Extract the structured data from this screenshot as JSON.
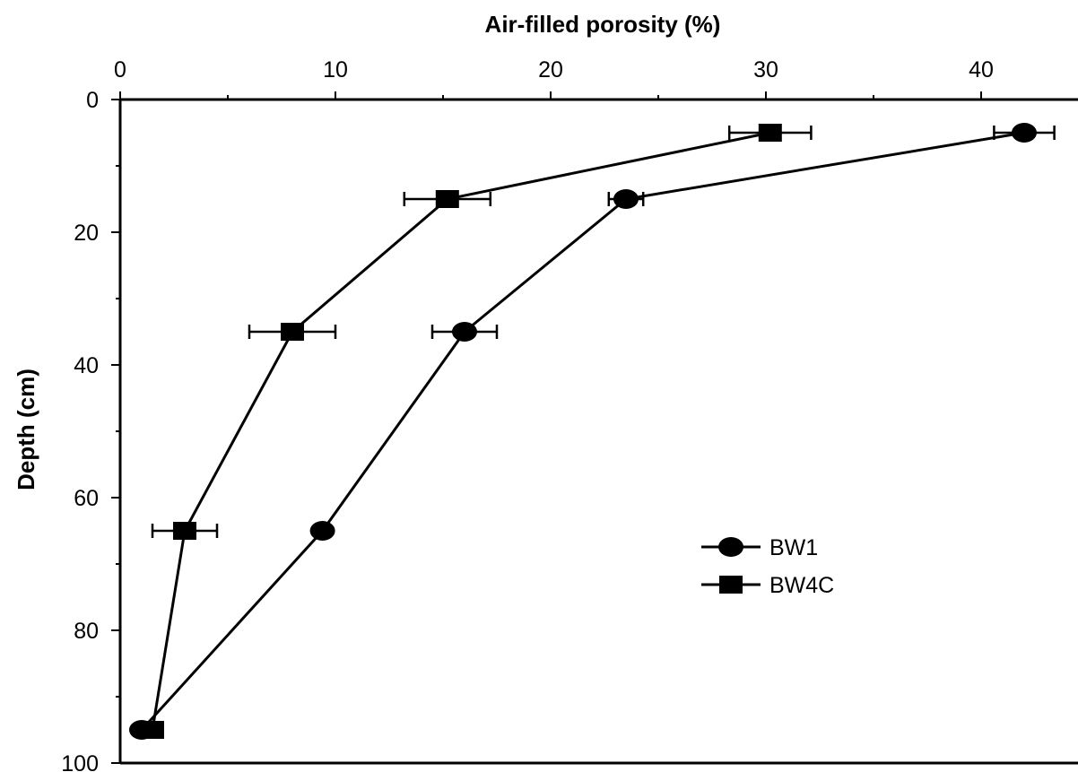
{
  "chart_data": {
    "type": "line",
    "xlabel": "Air-filled porosity (%)",
    "ylabel": "Depth (cm)",
    "x_axis_position": "top",
    "y_inverted": true,
    "xlim": [
      0,
      44.5
    ],
    "ylim": [
      0,
      100
    ],
    "xticks": [
      0,
      10,
      20,
      30,
      40
    ],
    "yticks": [
      0,
      20,
      40,
      60,
      80,
      100
    ],
    "legend_position": "right",
    "grid": false,
    "series": [
      {
        "name": "BW1",
        "marker": "circle",
        "color": "#000000",
        "x": [
          42.0,
          23.5,
          16.0,
          9.4,
          1.0
        ],
        "y": [
          5,
          15,
          35,
          65,
          95
        ],
        "x_error": [
          1.4,
          0.8,
          1.5,
          0,
          0
        ]
      },
      {
        "name": "BW4C",
        "marker": "square",
        "color": "#000000",
        "x": [
          30.2,
          15.2,
          8.0,
          3.0,
          1.5
        ],
        "y": [
          5,
          15,
          35,
          65,
          95
        ],
        "x_error": [
          1.9,
          2.0,
          2.0,
          1.5,
          0
        ]
      }
    ]
  }
}
